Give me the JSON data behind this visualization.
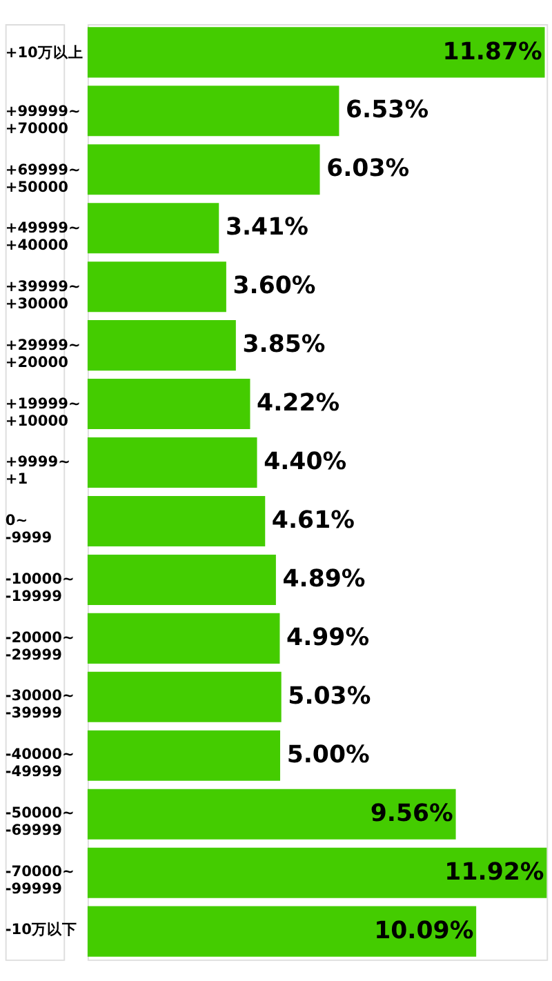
{
  "chart_data": {
    "type": "bar",
    "orientation": "horizontal",
    "categories": [
      "+10万以上",
      "+99999~\n+70000",
      "+69999~\n+50000",
      "+49999~\n+40000",
      "+39999~\n+30000",
      "+29999~\n+20000",
      "+19999~\n+10000",
      "+9999~\n+1",
      "0~\n-9999",
      "-10000~\n-19999",
      "-20000~\n-29999",
      "-30000~\n-39999",
      "-40000~\n-49999",
      "-50000~\n-69999",
      "-70000~\n-99999",
      "-10万以下"
    ],
    "series": [
      {
        "color": "#44cc00",
        "values": [
          11.87,
          6.53,
          6.03,
          3.41,
          3.6,
          3.85,
          4.22,
          4.4,
          4.61,
          4.89,
          4.99,
          5.03,
          5.0,
          9.56,
          11.92,
          10.09
        ],
        "value_labels": [
          "11.87%",
          "6.53%",
          "6.03%",
          "3.41%",
          "3.60%",
          "3.85%",
          "4.22%",
          "4.40%",
          "4.61%",
          "4.89%",
          "4.99%",
          "5.03%",
          "5.00%",
          "9.56%",
          "11.92%",
          "10.09%"
        ]
      }
    ]
  }
}
